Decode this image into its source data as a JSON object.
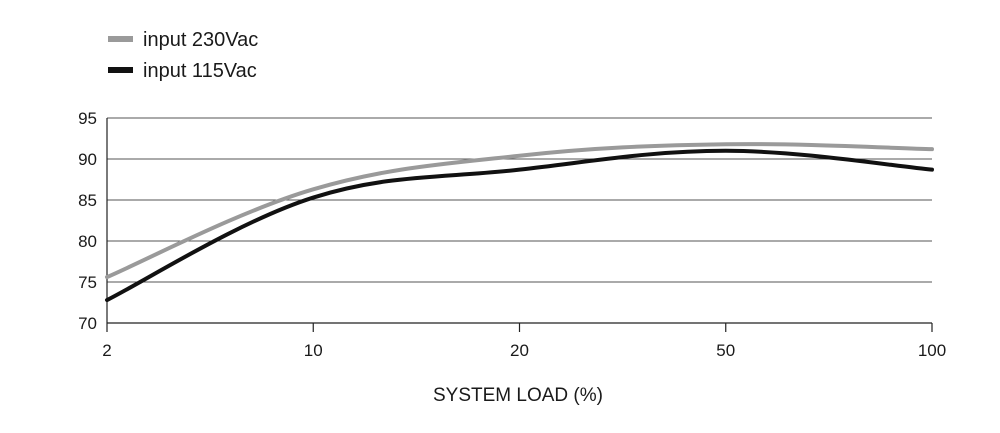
{
  "chart_data": {
    "type": "line",
    "title": "",
    "xlabel": "SYSTEM LOAD (%)",
    "ylabel": "",
    "x": [
      2,
      10,
      20,
      50,
      100
    ],
    "x_tick_labels": [
      "2",
      "10",
      "20",
      "50",
      "100"
    ],
    "x_scale": "categorical-evenly-spaced",
    "ylim": [
      70,
      95
    ],
    "y_ticks": [
      70,
      75,
      80,
      85,
      90,
      95
    ],
    "grid": "horizontal",
    "legend_position": "top-left",
    "series": [
      {
        "name": "input 230Vac",
        "color": "#9a9a9a",
        "points": [
          [
            2,
            75.6
          ],
          [
            10,
            86.3
          ],
          [
            20,
            90.4
          ],
          [
            50,
            91.8
          ],
          [
            100,
            91.2
          ]
        ]
      },
      {
        "name": "input 115Vac",
        "color": "#111111",
        "points": [
          [
            2,
            72.8
          ],
          [
            10,
            85.3
          ],
          [
            20,
            88.7
          ],
          [
            50,
            91.0
          ],
          [
            100,
            88.7
          ]
        ]
      }
    ]
  }
}
